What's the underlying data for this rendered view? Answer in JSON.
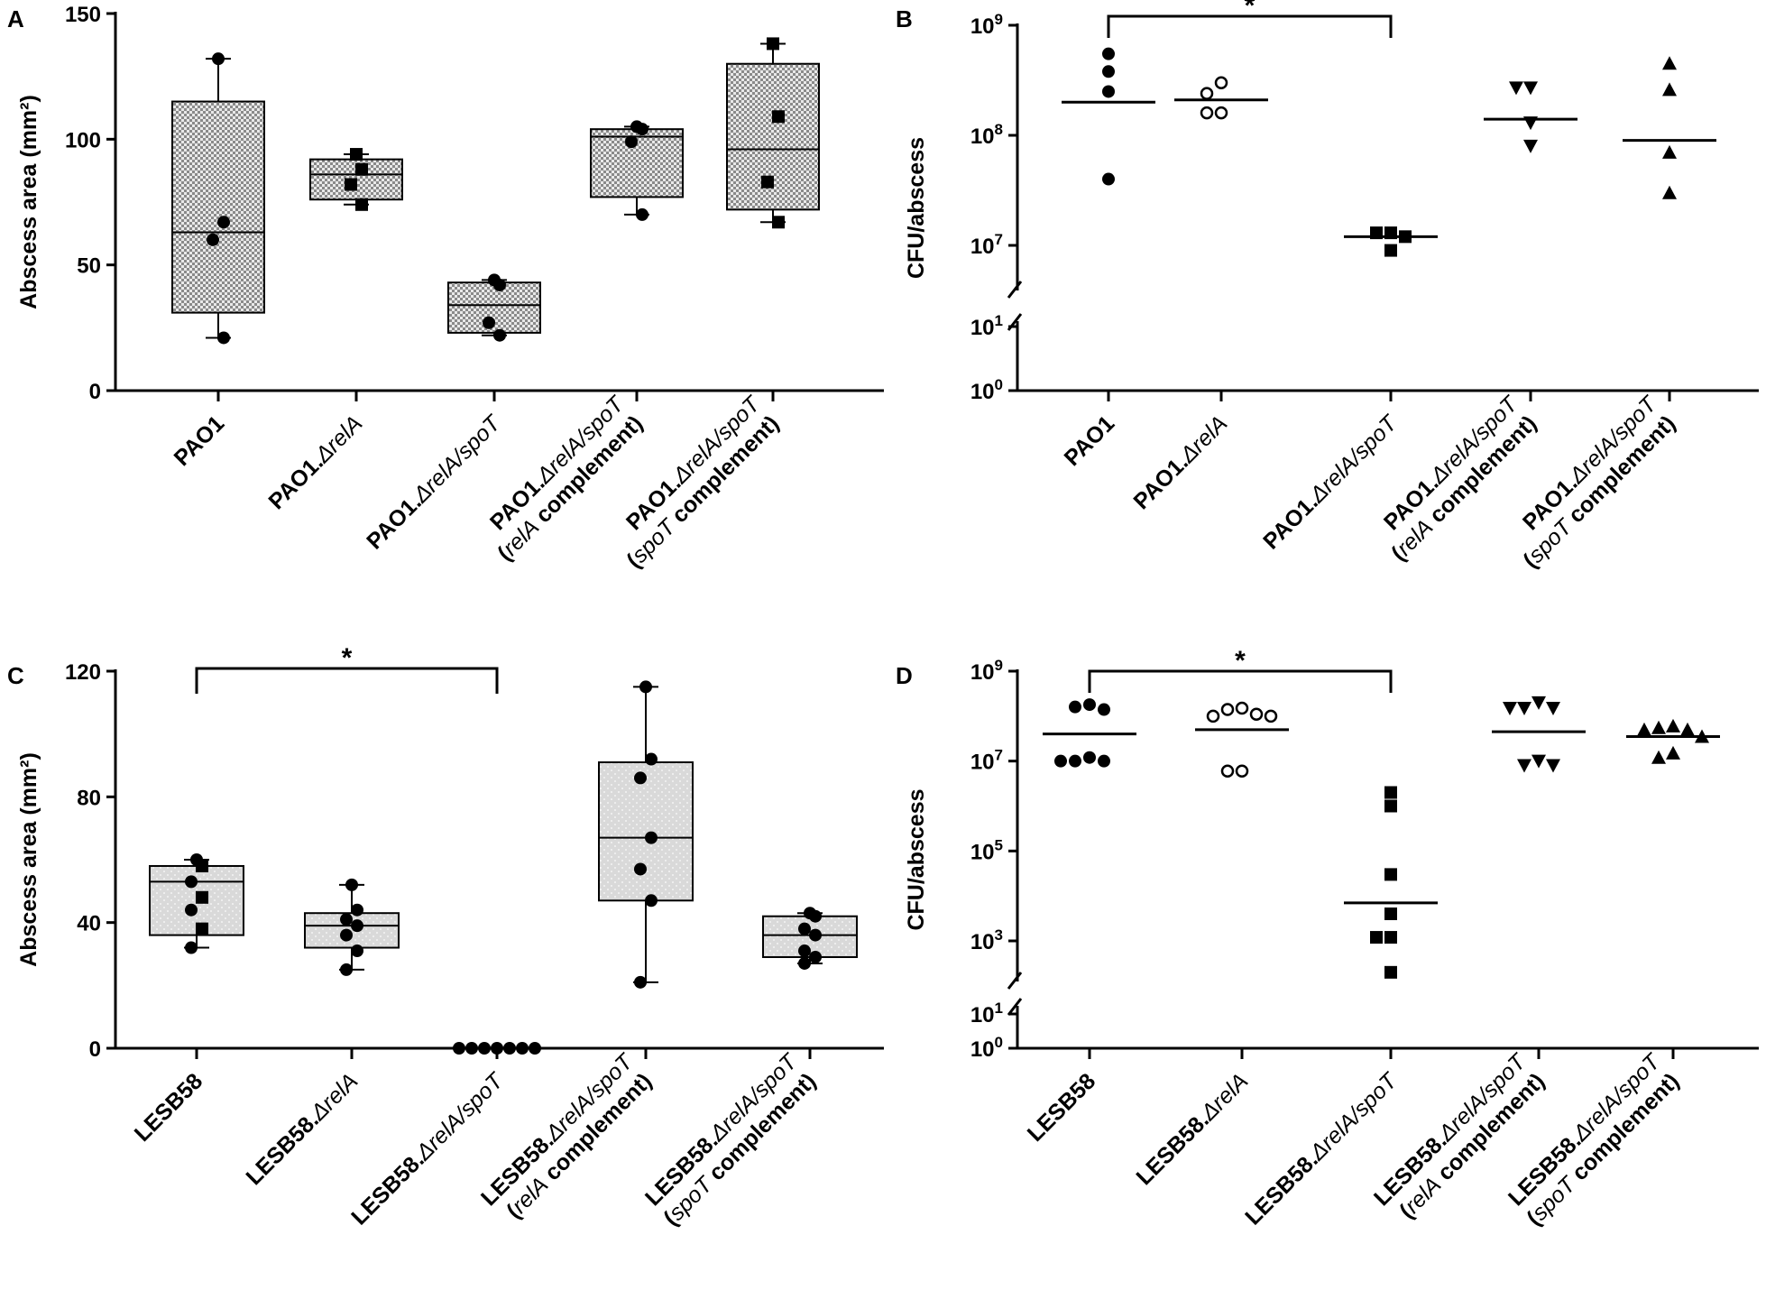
{
  "chart_data": [
    {
      "panel": "A",
      "type": "box",
      "ylabel": "Abscess area (mm²)",
      "ylim": [
        0,
        150
      ],
      "yticks": [
        0,
        50,
        100,
        150
      ],
      "categories": [
        {
          "lines": [
            [
              {
                "t": "PAO1"
              }
            ]
          ]
        },
        {
          "lines": [
            [
              {
                "t": "PAO1."
              },
              {
                "t": "ΔrelA",
                "i": true
              }
            ]
          ]
        },
        {
          "lines": [
            [
              {
                "t": "PAO1."
              },
              {
                "t": "ΔrelA/spoT",
                "i": true
              }
            ]
          ]
        },
        {
          "lines": [
            [
              {
                "t": "PAO1."
              },
              {
                "t": "ΔrelA/spoT",
                "i": true
              }
            ],
            [
              {
                "t": "("
              },
              {
                "t": "relA",
                "i": true
              },
              {
                "t": " complement)"
              }
            ]
          ]
        },
        {
          "lines": [
            [
              {
                "t": "PAO1."
              },
              {
                "t": "ΔrelA/spoT",
                "i": true
              }
            ],
            [
              {
                "t": "("
              },
              {
                "t": "spoT",
                "i": true
              },
              {
                "t": " complement)"
              }
            ]
          ]
        }
      ],
      "boxes": [
        {
          "min": 21,
          "q1": 31,
          "median": 63,
          "q3": 115,
          "max": 132,
          "points": [
            132,
            67,
            60,
            21
          ],
          "marker": "circle"
        },
        {
          "min": 74,
          "q1": 76,
          "median": 86,
          "q3": 92,
          "max": 94,
          "points": [
            94,
            88,
            82,
            74
          ],
          "marker": "square"
        },
        {
          "min": 22,
          "q1": 23,
          "median": 34,
          "q3": 43,
          "max": 44,
          "points": [
            44,
            42,
            27,
            22
          ],
          "marker": "circle"
        },
        {
          "min": 70,
          "q1": 77,
          "median": 101,
          "q3": 104,
          "max": 105,
          "points": [
            105,
            104,
            99,
            70
          ],
          "marker": "circle"
        },
        {
          "min": 67,
          "q1": 72,
          "median": 96,
          "q3": 130,
          "max": 138,
          "points": [
            138,
            109,
            83,
            67
          ],
          "marker": "square"
        }
      ],
      "fill": "#d4d4d4",
      "significance": []
    },
    {
      "panel": "B",
      "type": "scatter-log",
      "ylabel": "CFU/abscess",
      "ytick_exponents": [
        7,
        8,
        9
      ],
      "lower_tick_exponents": [
        0,
        1
      ],
      "categories": [
        {
          "lines": [
            [
              {
                "t": "PAO1"
              }
            ]
          ]
        },
        {
          "lines": [
            [
              {
                "t": "PAO1."
              },
              {
                "t": "ΔrelA",
                "i": true
              }
            ]
          ]
        },
        {
          "lines": [
            [
              {
                "t": "PAO1."
              },
              {
                "t": "ΔrelA/spoT",
                "i": true
              }
            ]
          ]
        },
        {
          "lines": [
            [
              {
                "t": "PAO1."
              },
              {
                "t": "ΔrelA/spoT",
                "i": true
              }
            ],
            [
              {
                "t": "("
              },
              {
                "t": "relA",
                "i": true
              },
              {
                "t": " complement)"
              }
            ]
          ]
        },
        {
          "lines": [
            [
              {
                "t": "PAO1."
              },
              {
                "t": "ΔrelA/spoT",
                "i": true
              }
            ],
            [
              {
                "t": "("
              },
              {
                "t": "spoT",
                "i": true
              },
              {
                "t": " complement)"
              }
            ]
          ]
        }
      ],
      "groups": [
        {
          "marker": "circle",
          "mean": 200000000,
          "points": [
            550000000.0,
            380000000.0,
            250000000.0,
            40000000.0
          ]
        },
        {
          "marker": "open-circle",
          "mean": 210000000,
          "points": [
            300000000.0,
            240000000.0,
            160000000.0,
            160000000.0
          ]
        },
        {
          "marker": "square",
          "mean": 12000000,
          "points": [
            13000000.0,
            13000000.0,
            12000000.0,
            9000000.0
          ]
        },
        {
          "marker": "triangle-down",
          "mean": 140000000,
          "points": [
            270000000.0,
            270000000.0,
            130000000.0,
            80000000.0
          ]
        },
        {
          "marker": "triangle-up",
          "mean": 90000000,
          "points": [
            450000000.0,
            260000000.0,
            70000000.0,
            30000000.0
          ]
        }
      ],
      "significance": [
        {
          "from": 0,
          "to": 2,
          "label": "*"
        }
      ]
    },
    {
      "panel": "C",
      "type": "box",
      "ylabel": "Abscess area (mm²)",
      "ylim": [
        0,
        120
      ],
      "yticks": [
        0,
        40,
        80,
        120
      ],
      "categories": [
        {
          "lines": [
            [
              {
                "t": "LESB58"
              }
            ]
          ]
        },
        {
          "lines": [
            [
              {
                "t": "LESB58."
              },
              {
                "t": "ΔrelA",
                "i": true
              }
            ]
          ]
        },
        {
          "lines": [
            [
              {
                "t": "LESB58."
              },
              {
                "t": "ΔrelA/spoT",
                "i": true
              }
            ]
          ]
        },
        {
          "lines": [
            [
              {
                "t": "LESB58."
              },
              {
                "t": "ΔrelA/spoT",
                "i": true
              }
            ],
            [
              {
                "t": "("
              },
              {
                "t": "relA",
                "i": true
              },
              {
                "t": " complement)"
              }
            ]
          ]
        },
        {
          "lines": [
            [
              {
                "t": "LESB58."
              },
              {
                "t": "ΔrelA/spoT",
                "i": true
              }
            ],
            [
              {
                "t": "("
              },
              {
                "t": "spoT",
                "i": true
              },
              {
                "t": " complement)"
              }
            ]
          ]
        }
      ],
      "boxes": [
        {
          "min": 32,
          "q1": 36,
          "median": 53,
          "q3": 58,
          "max": 60,
          "points": [
            60,
            58,
            53,
            48,
            44,
            38,
            32
          ],
          "marker": "mixed"
        },
        {
          "min": 25,
          "q1": 32,
          "median": 39,
          "q3": 43,
          "max": 52,
          "points": [
            52,
            44,
            41,
            39,
            36,
            31,
            25
          ],
          "marker": "circle"
        },
        {
          "zero_points": 7,
          "marker": "circle"
        },
        {
          "min": 21,
          "q1": 47,
          "median": 67,
          "q3": 91,
          "max": 115,
          "points": [
            115,
            92,
            86,
            67,
            57,
            47,
            21
          ],
          "marker": "circle"
        },
        {
          "min": 27,
          "q1": 29,
          "median": 36,
          "q3": 42,
          "max": 43,
          "points": [
            43,
            42,
            38,
            36,
            31,
            29,
            27
          ],
          "marker": "circle"
        }
      ],
      "fill": "#dcdcdc",
      "significance": [
        {
          "from": 0,
          "to": 2,
          "label": "*"
        }
      ]
    },
    {
      "panel": "D",
      "type": "scatter-log",
      "ylabel": "CFU/abscess",
      "ytick_exponents": [
        3,
        5,
        7,
        9
      ],
      "lower_tick_exponents": [
        0,
        1
      ],
      "categories": [
        {
          "lines": [
            [
              {
                "t": "LESB58"
              }
            ]
          ]
        },
        {
          "lines": [
            [
              {
                "t": "LESB58."
              },
              {
                "t": "ΔrelA",
                "i": true
              }
            ]
          ]
        },
        {
          "lines": [
            [
              {
                "t": "LESB58."
              },
              {
                "t": "ΔrelA/spoT",
                "i": true
              }
            ]
          ]
        },
        {
          "lines": [
            [
              {
                "t": "LESB58."
              },
              {
                "t": "ΔrelA/spoT",
                "i": true
              }
            ],
            [
              {
                "t": "("
              },
              {
                "t": "relA",
                "i": true
              },
              {
                "t": " complement)"
              }
            ]
          ]
        },
        {
          "lines": [
            [
              {
                "t": "LESB58."
              },
              {
                "t": "ΔrelA/spoT",
                "i": true
              }
            ],
            [
              {
                "t": "("
              },
              {
                "t": "spoT",
                "i": true
              },
              {
                "t": " complement)"
              }
            ]
          ]
        }
      ],
      "groups": [
        {
          "marker": "circle",
          "mean": 40000000,
          "points": [
            180000000.0,
            160000000.0,
            140000000.0,
            12000000.0,
            10000000.0,
            10000000.0,
            10000000.0
          ]
        },
        {
          "marker": "open-circle",
          "mean": 50000000,
          "points": [
            150000000.0,
            140000000.0,
            110000000.0,
            100000000.0,
            100000000.0,
            6000000.0,
            6000000.0
          ]
        },
        {
          "marker": "square",
          "mean": 7000,
          "points": [
            2000000.0,
            1000000.0,
            30000.0,
            4000.0,
            1200.0,
            1200.0,
            200.0
          ]
        },
        {
          "marker": "triangle-down",
          "mean": 45000000,
          "points": [
            200000000.0,
            150000000.0,
            150000000.0,
            150000000.0,
            10000000.0,
            8000000.0,
            8000000.0
          ]
        },
        {
          "marker": "triangle-up",
          "mean": 35000000,
          "points": [
            60000000.0,
            55000000.0,
            50000000.0,
            50000000.0,
            35000000.0,
            15000000.0,
            12000000.0
          ]
        }
      ],
      "significance": [
        {
          "from": 0,
          "to": 2,
          "label": "*"
        }
      ]
    }
  ]
}
